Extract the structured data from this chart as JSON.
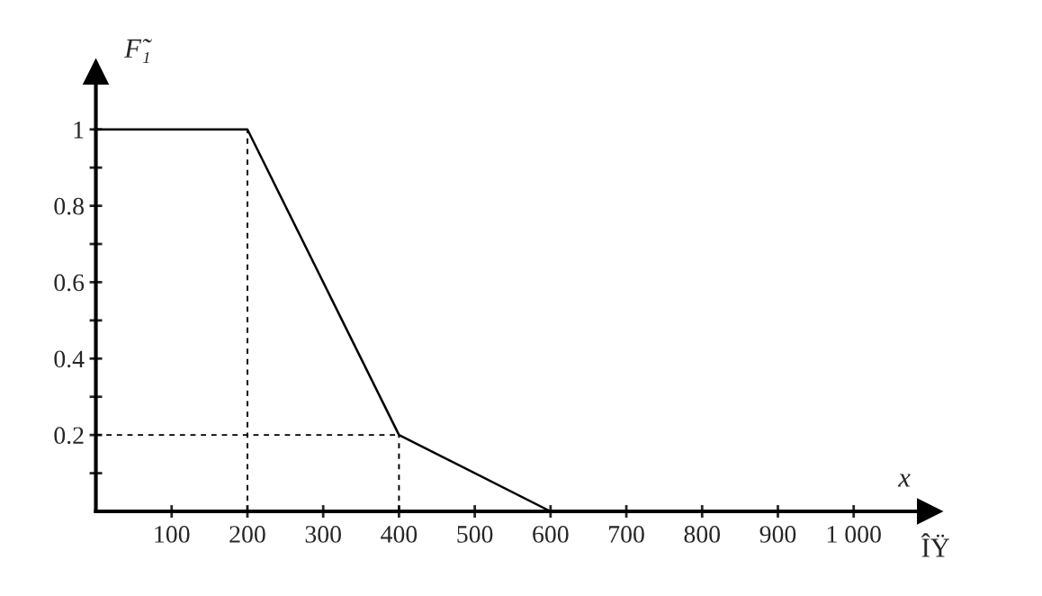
{
  "chart_data": {
    "type": "line",
    "x": [
      0,
      200,
      400,
      600
    ],
    "series": [
      {
        "color": "#000000",
        "values": [
          1,
          1,
          0.2,
          0
        ]
      }
    ],
    "xlabel": "x",
    "ylabel": "F̃₁",
    "annotations": [
      "ÎŸ"
    ],
    "xlim": [
      0,
      1100
    ],
    "ylim": [
      0,
      1.15
    ],
    "xticks": [
      100,
      200,
      300,
      400,
      500,
      600,
      700,
      800,
      900,
      {
        "value": 1000,
        "label": "1 000"
      }
    ],
    "yticks": [
      {
        "value": 0.1,
        "label": null
      },
      0.2,
      {
        "value": 0.3,
        "label": null
      },
      0.4,
      {
        "value": 0.5,
        "label": null
      },
      0.6,
      {
        "value": 0.7,
        "label": null
      },
      0.8,
      {
        "value": 0.9,
        "label": null
      },
      1
    ],
    "ref_lines": [
      {
        "axis": "x",
        "value": 200,
        "line_style": "dashed",
        "color": "#000000"
      },
      {
        "axis": "x",
        "value": 400,
        "line_style": "dashed",
        "color": "#000000"
      },
      {
        "axis": "y",
        "value": 0.2,
        "line_style": "dashed",
        "color": "#000000"
      }
    ],
    "grid": false,
    "legend": false,
    "marker": "none",
    "line_style": "solid"
  }
}
